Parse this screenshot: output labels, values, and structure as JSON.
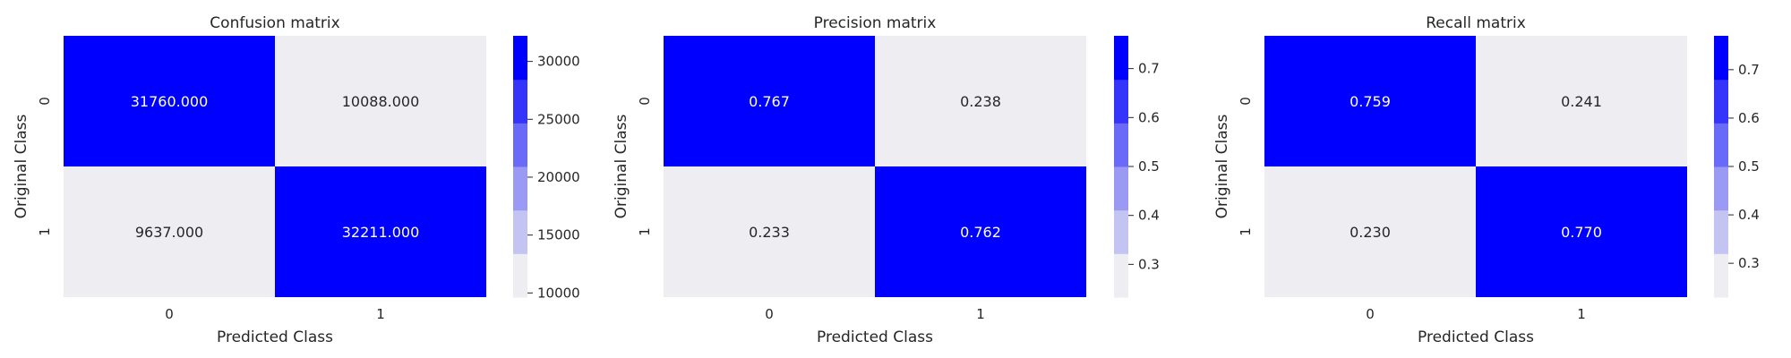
{
  "chart_data": [
    {
      "type": "heatmap",
      "title": "Confusion matrix",
      "xlabel": "Predicted Class",
      "ylabel": "Original Class",
      "x_categories": [
        "0",
        "1"
      ],
      "y_categories": [
        "0",
        "1"
      ],
      "values": [
        [
          31760.0,
          10088.0
        ],
        [
          9637.0,
          32211.0
        ]
      ],
      "cell_labels": [
        [
          "31760.000",
          "10088.000"
        ],
        [
          "9637.000",
          "32211.000"
        ]
      ],
      "colorbar": {
        "range": [
          9637,
          32211
        ],
        "ticks": [
          10000,
          15000,
          20000,
          25000,
          30000
        ],
        "tick_labels": [
          "10000",
          "15000",
          "20000",
          "25000",
          "30000"
        ]
      }
    },
    {
      "type": "heatmap",
      "title": "Precision matrix",
      "xlabel": "Predicted Class",
      "ylabel": "Original Class",
      "x_categories": [
        "0",
        "1"
      ],
      "y_categories": [
        "0",
        "1"
      ],
      "values": [
        [
          0.767,
          0.238
        ],
        [
          0.233,
          0.762
        ]
      ],
      "cell_labels": [
        [
          "0.767",
          "0.238"
        ],
        [
          "0.233",
          "0.762"
        ]
      ],
      "colorbar": {
        "range": [
          0.233,
          0.767
        ],
        "ticks": [
          0.3,
          0.4,
          0.5,
          0.6,
          0.7
        ],
        "tick_labels": [
          "0.3",
          "0.4",
          "0.5",
          "0.6",
          "0.7"
        ]
      }
    },
    {
      "type": "heatmap",
      "title": "Recall matrix",
      "xlabel": "Predicted Class",
      "ylabel": "Original Class",
      "x_categories": [
        "0",
        "1"
      ],
      "y_categories": [
        "0",
        "1"
      ],
      "values": [
        [
          0.759,
          0.241
        ],
        [
          0.23,
          0.77
        ]
      ],
      "cell_labels": [
        [
          "0.759",
          "0.241"
        ],
        [
          "0.230",
          "0.770"
        ]
      ],
      "colorbar": {
        "range": [
          0.23,
          0.77
        ],
        "ticks": [
          0.3,
          0.4,
          0.5,
          0.6,
          0.7
        ],
        "tick_labels": [
          "0.3",
          "0.4",
          "0.5",
          "0.6",
          "0.7"
        ]
      }
    }
  ],
  "colormap": {
    "colors": [
      "#eeeef2",
      "#c4c4f3",
      "#9a9af4",
      "#6a6af8",
      "#3434fb",
      "#0000ff"
    ],
    "high_text_color": "#ffffff",
    "low_text_color": "#262626"
  }
}
